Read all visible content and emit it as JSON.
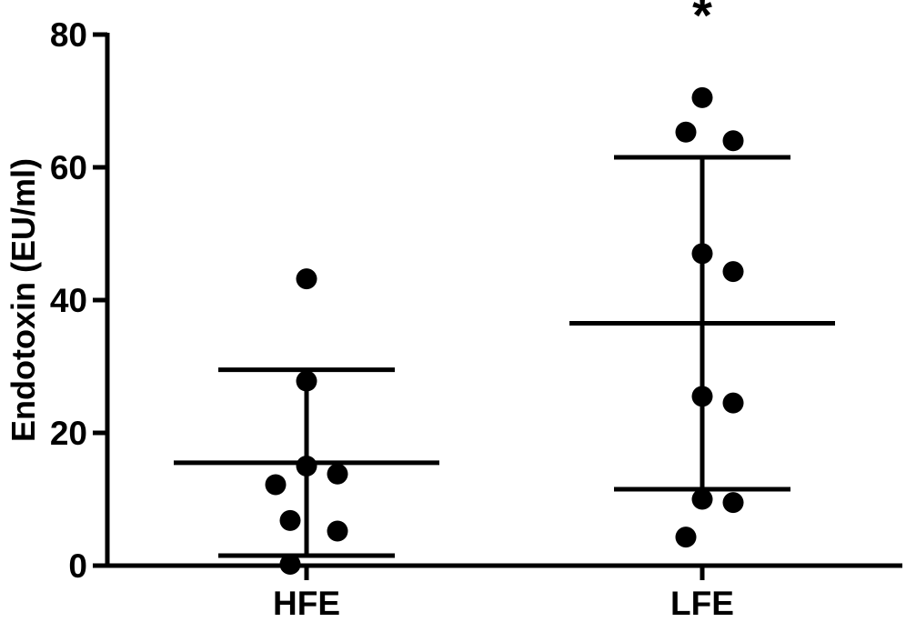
{
  "chart_data": {
    "type": "scatter",
    "ylabel": "Endotoxin (EU/ml)",
    "xlabel": "",
    "ylim": [
      0,
      80
    ],
    "yticks": [
      0,
      20,
      40,
      60,
      80
    ],
    "grid": false,
    "categories": [
      "HFE",
      "LFE"
    ],
    "groups": [
      {
        "name": "HFE",
        "points": [
          43.2,
          27.8,
          15.0,
          13.8,
          12.2,
          6.8,
          5.2,
          0.2
        ],
        "mean": 15.5,
        "error_low": 1.5,
        "error_high": 29.5,
        "annotation": ""
      },
      {
        "name": "LFE",
        "points": [
          70.5,
          65.3,
          64.0,
          47.0,
          44.3,
          25.5,
          24.5,
          10.0,
          9.5,
          4.3
        ],
        "mean": 36.5,
        "error_low": 11.5,
        "error_high": 61.5,
        "annotation": "*"
      }
    ]
  }
}
